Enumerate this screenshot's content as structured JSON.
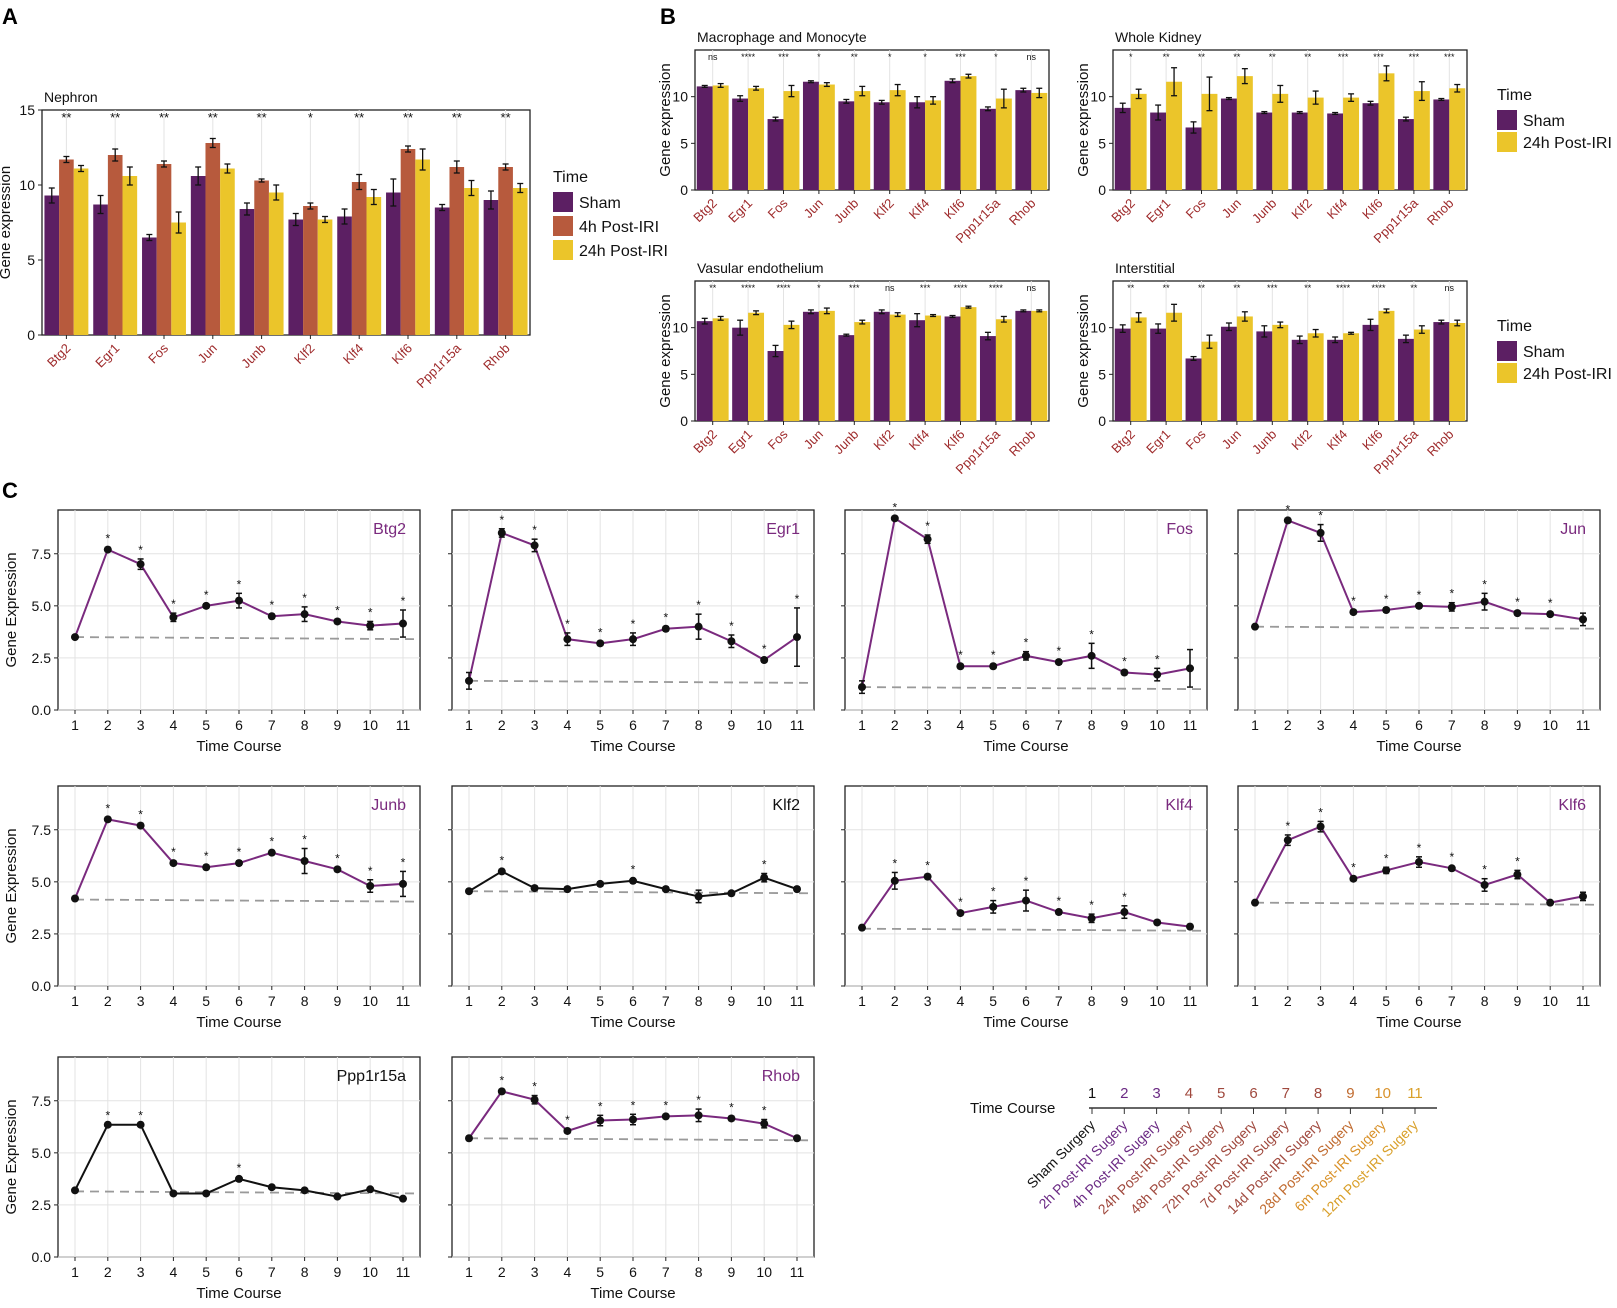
{
  "panel_labels": {
    "a": "A",
    "b": "B",
    "c": "C"
  },
  "colors": {
    "sham": "#5C1F63",
    "h4": "#B75A3D",
    "h24": "#EBC52A",
    "gene_red": "#9E2A2B",
    "line_purple": "#7A2A7E",
    "line_black": "#111111",
    "baseline": "#9A9A9A",
    "grid": "#E3E3E3"
  },
  "legend_a": {
    "title": "Time",
    "items": [
      "Sham",
      "4h Post-IRI",
      "24h Post-IRI"
    ]
  },
  "legend_b": {
    "title": "Time",
    "items": [
      "Sham",
      "24h Post-IRI"
    ]
  },
  "time_course_key": {
    "title": "Time Course",
    "numbers": [
      "1",
      "2",
      "3",
      "4",
      "5",
      "6",
      "7",
      "8",
      "9",
      "10",
      "11"
    ],
    "labels": [
      "Sham Surgery",
      "2h Post-IRI Sugery",
      "4h Post-IRI Sugery",
      "24h Post-IRI Sugery",
      "48h Post-IRI Sugery",
      "72h Post-IRI Sugery",
      "7d Post-IRI Sugery",
      "14d Post-IRI Sugery",
      "28d Post-IRI Sugery",
      "6m Post-IRI Sugery",
      "12m Post-IRI Sugery"
    ],
    "colors": [
      "#111111",
      "#6B2A84",
      "#6B2A84",
      "#A0493E",
      "#A0493E",
      "#A0493E",
      "#A0493E",
      "#A0493E",
      "#C06A2E",
      "#D9922B",
      "#D9A02A"
    ]
  },
  "chart_data": [
    {
      "id": "A",
      "type": "bar",
      "title": "Nephron",
      "categories": [
        "Btg2",
        "Egr1",
        "Fos",
        "Jun",
        "Junb",
        "Klf2",
        "Klf4",
        "Klf6",
        "Ppp1r15a",
        "Rhob"
      ],
      "ylabel": "Gene expression",
      "ylim": [
        0,
        15
      ],
      "yticks": [
        0,
        5,
        10,
        15
      ],
      "significance": [
        "**",
        "**",
        "**",
        "**",
        "**",
        "*",
        "**",
        "**",
        "**",
        "**"
      ],
      "series": [
        {
          "name": "Sham",
          "values": [
            9.3,
            8.7,
            6.5,
            10.6,
            8.4,
            7.7,
            7.9,
            9.5,
            8.5,
            9.0
          ],
          "errors": [
            0.5,
            0.6,
            0.2,
            0.6,
            0.4,
            0.4,
            0.5,
            0.9,
            0.2,
            0.6
          ]
        },
        {
          "name": "4h Post-IRI",
          "values": [
            11.7,
            12.0,
            11.4,
            12.8,
            10.3,
            8.6,
            10.2,
            12.4,
            11.2,
            11.2
          ],
          "errors": [
            0.2,
            0.4,
            0.2,
            0.3,
            0.1,
            0.2,
            0.5,
            0.2,
            0.4,
            0.2
          ]
        },
        {
          "name": "24h Post-IRI",
          "values": [
            11.1,
            10.6,
            7.5,
            11.1,
            9.5,
            7.7,
            9.2,
            11.7,
            9.8,
            9.8
          ],
          "errors": [
            0.2,
            0.6,
            0.7,
            0.3,
            0.5,
            0.2,
            0.5,
            0.7,
            0.5,
            0.3
          ]
        }
      ]
    },
    {
      "id": "B1",
      "type": "bar",
      "title": "Macrophage and Monocyte",
      "categories": [
        "Btg2",
        "Egr1",
        "Fos",
        "Jun",
        "Junb",
        "Klf2",
        "Klf4",
        "Klf6",
        "Ppp1r15a",
        "Rhob"
      ],
      "ylabel": "Gene expression",
      "ylim": [
        0,
        15
      ],
      "yticks": [
        0,
        5,
        10
      ],
      "significance": [
        "ns",
        "****",
        "***",
        "*",
        "**",
        "*",
        "*",
        "***",
        "*",
        "ns"
      ],
      "series": [
        {
          "name": "Sham",
          "values": [
            11.1,
            9.8,
            7.6,
            11.6,
            9.5,
            9.4,
            9.4,
            11.7,
            8.7,
            10.7
          ],
          "errors": [
            0.1,
            0.3,
            0.2,
            0.1,
            0.2,
            0.2,
            0.6,
            0.2,
            0.2,
            0.2
          ]
        },
        {
          "name": "24h Post-IRI",
          "values": [
            11.2,
            10.9,
            10.6,
            11.3,
            10.6,
            10.7,
            9.6,
            12.2,
            9.8,
            10.4
          ],
          "errors": [
            0.2,
            0.2,
            0.6,
            0.2,
            0.5,
            0.6,
            0.4,
            0.2,
            1.0,
            0.5
          ]
        }
      ]
    },
    {
      "id": "B2",
      "type": "bar",
      "title": "Whole Kidney",
      "categories": [
        "Btg2",
        "Egr1",
        "Fos",
        "Jun",
        "Junb",
        "Klf2",
        "Klf4",
        "Klf6",
        "Ppp1r15a",
        "Rhob"
      ],
      "ylabel": "Gene expression",
      "ylim": [
        0,
        15
      ],
      "yticks": [
        0,
        5,
        10
      ],
      "significance": [
        "*",
        "**",
        "**",
        "**",
        "**",
        "**",
        "***",
        "***",
        "***",
        "***"
      ],
      "series": [
        {
          "name": "Sham",
          "values": [
            8.8,
            8.3,
            6.7,
            9.8,
            8.3,
            8.3,
            8.2,
            9.3,
            7.6,
            9.7
          ],
          "errors": [
            0.5,
            0.8,
            0.6,
            0.1,
            0.1,
            0.1,
            0.1,
            0.2,
            0.2,
            0.1
          ]
        },
        {
          "name": "24h Post-IRI",
          "values": [
            10.3,
            11.6,
            10.3,
            12.2,
            10.3,
            9.9,
            9.9,
            12.5,
            10.6,
            10.9
          ],
          "errors": [
            0.5,
            1.5,
            1.8,
            0.8,
            0.9,
            0.7,
            0.4,
            0.8,
            1.0,
            0.4
          ]
        }
      ]
    },
    {
      "id": "B3",
      "type": "bar",
      "title": "Vasular endothelium",
      "categories": [
        "Btg2",
        "Egr1",
        "Fos",
        "Jun",
        "Junb",
        "Klf2",
        "Klf4",
        "Klf6",
        "Ppp1r15a",
        "Rhob"
      ],
      "ylabel": "Gene expression",
      "ylim": [
        0,
        15
      ],
      "yticks": [
        0,
        5,
        10
      ],
      "significance": [
        "**",
        "****",
        "****",
        "*",
        "***",
        "ns",
        "***",
        "****",
        "****",
        "ns"
      ],
      "series": [
        {
          "name": "Sham",
          "values": [
            10.7,
            10.0,
            7.5,
            11.7,
            9.2,
            11.7,
            10.8,
            11.2,
            9.1,
            11.8
          ],
          "errors": [
            0.3,
            0.8,
            0.6,
            0.2,
            0.1,
            0.2,
            0.7,
            0.1,
            0.4,
            0.1
          ]
        },
        {
          "name": "24h Post-IRI",
          "values": [
            11.0,
            11.6,
            10.3,
            11.8,
            10.6,
            11.4,
            11.3,
            12.2,
            10.9,
            11.8
          ],
          "errors": [
            0.2,
            0.2,
            0.4,
            0.3,
            0.2,
            0.2,
            0.1,
            0.1,
            0.3,
            0.1
          ]
        }
      ]
    },
    {
      "id": "B4",
      "type": "bar",
      "title": "Interstitial",
      "categories": [
        "Btg2",
        "Egr1",
        "Fos",
        "Jun",
        "Junb",
        "Klf2",
        "Klf4",
        "Klf6",
        "Ppp1r15a",
        "Rhob"
      ],
      "ylabel": "Gene expression",
      "ylim": [
        0,
        15
      ],
      "yticks": [
        0,
        5,
        10
      ],
      "significance": [
        "**",
        "**",
        "**",
        "**",
        "***",
        "**",
        "****",
        "****",
        "**",
        "ns"
      ],
      "series": [
        {
          "name": "Sham",
          "values": [
            9.9,
            9.9,
            6.7,
            10.1,
            9.6,
            8.7,
            8.7,
            10.3,
            8.8,
            10.6
          ],
          "errors": [
            0.4,
            0.5,
            0.2,
            0.4,
            0.6,
            0.4,
            0.3,
            0.6,
            0.4,
            0.2
          ]
        },
        {
          "name": "24h Post-IRI",
          "values": [
            11.1,
            11.6,
            8.5,
            11.2,
            10.3,
            9.4,
            9.4,
            11.8,
            9.8,
            10.5
          ],
          "errors": [
            0.5,
            0.9,
            0.7,
            0.5,
            0.3,
            0.4,
            0.1,
            0.2,
            0.4,
            0.3
          ]
        }
      ]
    },
    {
      "id": "C-Btg2",
      "type": "line",
      "title": "Btg2",
      "title_color": "purple",
      "line_color": "purple",
      "x": [
        1,
        2,
        3,
        4,
        5,
        6,
        7,
        8,
        9,
        10,
        11
      ],
      "values": [
        3.5,
        7.7,
        7.0,
        4.45,
        5.0,
        5.25,
        4.5,
        4.6,
        4.25,
        4.05,
        4.15
      ],
      "errors": [
        0,
        0.1,
        0.25,
        0.2,
        0.1,
        0.35,
        0.1,
        0.35,
        0.1,
        0.2,
        0.65
      ],
      "sig": [
        "",
        "*",
        "*",
        "*",
        "*",
        "*",
        "*",
        "*",
        "*",
        "*",
        "*"
      ],
      "baseline": [
        3.5,
        3.4
      ],
      "xlabel": "Time Course",
      "ylabel": "Gene Expression",
      "ylim": [
        0,
        9.6
      ],
      "yticks": [
        "0.0",
        "2.5",
        "5.0",
        "7.5"
      ]
    },
    {
      "id": "C-Egr1",
      "type": "line",
      "title": "Egr1",
      "title_color": "purple",
      "line_color": "purple",
      "x": [
        1,
        2,
        3,
        4,
        5,
        6,
        7,
        8,
        9,
        10,
        11
      ],
      "values": [
        1.4,
        8.5,
        7.9,
        3.4,
        3.2,
        3.4,
        3.9,
        4.0,
        3.3,
        2.4,
        3.5
      ],
      "errors": [
        0.4,
        0.2,
        0.3,
        0.3,
        0.1,
        0.3,
        0.1,
        0.6,
        0.3,
        0.1,
        1.4
      ],
      "sig": [
        "",
        "*",
        "*",
        "*",
        "*",
        "*",
        "*",
        "*",
        "*",
        "*",
        "*"
      ],
      "baseline": [
        1.4,
        1.3
      ],
      "xlabel": "Time Course",
      "ylabel": "Gene Expression",
      "ylim": [
        0,
        9.6
      ],
      "yticks": [
        "0.0",
        "2.5",
        "5.0",
        "7.5"
      ]
    },
    {
      "id": "C-Fos",
      "type": "line",
      "title": "Fos",
      "title_color": "purple",
      "line_color": "purple",
      "x": [
        1,
        2,
        3,
        4,
        5,
        6,
        7,
        8,
        9,
        10,
        11
      ],
      "values": [
        1.1,
        9.2,
        8.2,
        2.1,
        2.1,
        2.6,
        2.3,
        2.6,
        1.8,
        1.7,
        2.0
      ],
      "errors": [
        0.3,
        0.1,
        0.2,
        0.1,
        0.1,
        0.2,
        0.1,
        0.6,
        0.1,
        0.3,
        0.9
      ],
      "sig": [
        "",
        "*",
        "*",
        "*",
        "*",
        "*",
        "*",
        "*",
        "*",
        "*",
        ""
      ],
      "baseline": [
        1.1,
        1.0
      ],
      "xlabel": "Time Course",
      "ylabel": "Gene Expression",
      "ylim": [
        0,
        9.6
      ],
      "yticks": [
        "0.0",
        "2.5",
        "5.0",
        "7.5"
      ]
    },
    {
      "id": "C-Jun",
      "type": "line",
      "title": "Jun",
      "title_color": "purple",
      "line_color": "purple",
      "x": [
        1,
        2,
        3,
        4,
        5,
        6,
        7,
        8,
        9,
        10,
        11
      ],
      "values": [
        4.0,
        9.1,
        8.5,
        4.7,
        4.8,
        5.0,
        4.95,
        5.2,
        4.65,
        4.6,
        4.35
      ],
      "errors": [
        0,
        0.1,
        0.4,
        0.1,
        0.1,
        0.1,
        0.2,
        0.4,
        0.1,
        0.1,
        0.3
      ],
      "sig": [
        "",
        "*",
        "*",
        "*",
        "*",
        "*",
        "*",
        "*",
        "*",
        "*",
        ""
      ],
      "baseline": [
        4.0,
        3.9
      ],
      "xlabel": "Time Course",
      "ylabel": "Gene Expression",
      "ylim": [
        0,
        9.6
      ],
      "yticks": [
        "0.0",
        "2.5",
        "5.0",
        "7.5"
      ]
    },
    {
      "id": "C-Junb",
      "type": "line",
      "title": "Junb",
      "title_color": "purple",
      "line_color": "purple",
      "x": [
        1,
        2,
        3,
        4,
        5,
        6,
        7,
        8,
        9,
        10,
        11
      ],
      "values": [
        4.2,
        8.0,
        7.7,
        5.9,
        5.7,
        5.9,
        6.4,
        6.0,
        5.6,
        4.8,
        4.9
      ],
      "errors": [
        0,
        0.1,
        0.1,
        0.1,
        0.1,
        0.1,
        0.1,
        0.6,
        0.1,
        0.3,
        0.6
      ],
      "sig": [
        "",
        "*",
        "*",
        "*",
        "*",
        "*",
        "*",
        "*",
        "*",
        "*",
        "*"
      ],
      "baseline": [
        4.15,
        4.05
      ],
      "xlabel": "Time Course",
      "ylabel": "Gene Expression",
      "ylim": [
        0,
        9.6
      ],
      "yticks": [
        "0.0",
        "2.5",
        "5.0",
        "7.5"
      ]
    },
    {
      "id": "C-Klf2",
      "type": "line",
      "title": "Klf2",
      "title_color": "black",
      "line_color": "black",
      "x": [
        1,
        2,
        3,
        4,
        5,
        6,
        7,
        8,
        9,
        10,
        11
      ],
      "values": [
        4.55,
        5.5,
        4.7,
        4.65,
        4.9,
        5.05,
        4.65,
        4.3,
        4.45,
        5.2,
        4.65
      ],
      "errors": [
        0.1,
        0.1,
        0.1,
        0.1,
        0.1,
        0.1,
        0.1,
        0.3,
        0.1,
        0.2,
        0.1
      ],
      "sig": [
        "",
        "*",
        "",
        "",
        "",
        "*",
        "",
        "",
        "",
        "*",
        ""
      ],
      "baseline": [
        4.55,
        4.45
      ],
      "xlabel": "Time Course",
      "ylabel": "Gene Expression",
      "ylim": [
        0,
        9.6
      ],
      "yticks": [
        "0.0",
        "2.5",
        "5.0",
        "7.5"
      ]
    },
    {
      "id": "C-Klf4",
      "type": "line",
      "title": "Klf4",
      "title_color": "purple",
      "line_color": "purple",
      "x": [
        1,
        2,
        3,
        4,
        5,
        6,
        7,
        8,
        9,
        10,
        11
      ],
      "values": [
        2.8,
        5.05,
        5.25,
        3.5,
        3.8,
        4.1,
        3.55,
        3.25,
        3.55,
        3.05,
        2.85
      ],
      "errors": [
        0.1,
        0.4,
        0.1,
        0.1,
        0.3,
        0.5,
        0.1,
        0.2,
        0.3,
        0.1,
        0.1
      ],
      "sig": [
        "",
        "*",
        "*",
        "*",
        "*",
        "*",
        "*",
        "*",
        "*",
        "",
        ""
      ],
      "baseline": [
        2.75,
        2.65
      ],
      "xlabel": "Time Course",
      "ylabel": "Gene Expression",
      "ylim": [
        0,
        9.6
      ],
      "yticks": [
        "0.0",
        "2.5",
        "5.0",
        "7.5"
      ]
    },
    {
      "id": "C-Klf6",
      "type": "line",
      "title": "Klf6",
      "title_color": "purple",
      "line_color": "purple",
      "x": [
        1,
        2,
        3,
        4,
        5,
        6,
        7,
        8,
        9,
        10,
        11
      ],
      "values": [
        4.0,
        7.0,
        7.65,
        5.15,
        5.55,
        5.95,
        5.65,
        4.85,
        5.35,
        4.0,
        4.3
      ],
      "errors": [
        0,
        0.25,
        0.25,
        0.1,
        0.15,
        0.25,
        0.1,
        0.3,
        0.2,
        0,
        0.2
      ],
      "sig": [
        "",
        "*",
        "*",
        "*",
        "*",
        "*",
        "*",
        "*",
        "*",
        "",
        ""
      ],
      "baseline": [
        4.0,
        3.9
      ],
      "xlabel": "Time Course",
      "ylabel": "Gene Expression",
      "ylim": [
        0,
        9.6
      ],
      "yticks": [
        "0.0",
        "2.5",
        "5.0",
        "7.5"
      ]
    },
    {
      "id": "C-Ppp1r15a",
      "type": "line",
      "title": "Ppp1r15a",
      "title_color": "black",
      "line_color": "black",
      "x": [
        1,
        2,
        3,
        4,
        5,
        6,
        7,
        8,
        9,
        10,
        11
      ],
      "values": [
        3.2,
        6.35,
        6.35,
        3.05,
        3.05,
        3.75,
        3.35,
        3.2,
        2.9,
        3.25,
        2.8
      ],
      "errors": [
        0,
        0,
        0,
        0,
        0,
        0.1,
        0,
        0,
        0,
        0,
        0
      ],
      "sig": [
        "",
        "*",
        "*",
        "",
        "",
        "*",
        "",
        "",
        "",
        "",
        ""
      ],
      "baseline": [
        3.15,
        3.05
      ],
      "xlabel": "Time Course",
      "ylabel": "Gene Expression",
      "ylim": [
        0,
        9.6
      ],
      "yticks": [
        "0.0",
        "2.5",
        "5.0",
        "7.5"
      ]
    },
    {
      "id": "C-Rhob",
      "type": "line",
      "title": "Rhob",
      "title_color": "purple",
      "line_color": "purple",
      "x": [
        1,
        2,
        3,
        4,
        5,
        6,
        7,
        8,
        9,
        10,
        11
      ],
      "values": [
        5.7,
        7.95,
        7.55,
        6.05,
        6.55,
        6.6,
        6.75,
        6.8,
        6.65,
        6.4,
        5.7
      ],
      "errors": [
        0,
        0.1,
        0.2,
        0.1,
        0.25,
        0.25,
        0.1,
        0.3,
        0.1,
        0.2,
        0
      ],
      "sig": [
        "",
        "*",
        "*",
        "*",
        "*",
        "*",
        "*",
        "*",
        "*",
        "*",
        ""
      ],
      "baseline": [
        5.7,
        5.6
      ],
      "xlabel": "Time Course",
      "ylabel": "Gene Expression",
      "ylim": [
        0,
        9.6
      ],
      "yticks": [
        "0.0",
        "2.5",
        "5.0",
        "7.5"
      ]
    }
  ]
}
